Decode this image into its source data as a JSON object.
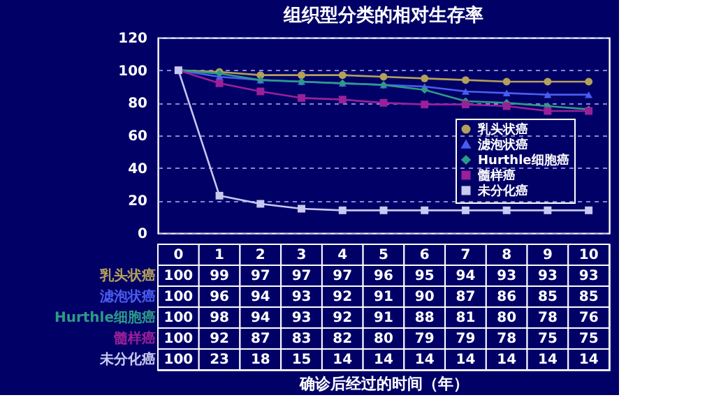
{
  "chart_data": {
    "type": "line",
    "title": "组织型分类的相对生存率",
    "annotations": [
      "确诊后经过的时间（年）"
    ],
    "categories": [
      "0",
      "1",
      "2",
      "3",
      "4",
      "5",
      "6",
      "7",
      "8",
      "9",
      "10"
    ],
    "series": [
      {
        "name": "乳头状癌",
        "color": "#b4a05a",
        "marker": "circle",
        "values": [
          100,
          99,
          97,
          97,
          97,
          96,
          95,
          94,
          93,
          93,
          93
        ]
      },
      {
        "name": "滤泡状癌",
        "color": "#4a5cf0",
        "marker": "triangle",
        "values": [
          100,
          96,
          94,
          93,
          92,
          91,
          90,
          87,
          86,
          85,
          85
        ]
      },
      {
        "name": "Hurthle细胞癌",
        "color": "#2e9a86",
        "marker": "diamond",
        "values": [
          100,
          98,
          94,
          93,
          92,
          91,
          88,
          81,
          80,
          78,
          76
        ]
      },
      {
        "name": "髓样癌",
        "color": "#9a209a",
        "marker": "square",
        "values": [
          100,
          92,
          87,
          83,
          82,
          80,
          79,
          79,
          78,
          75,
          75
        ]
      },
      {
        "name": "未分化癌",
        "color": "#c8c8f0",
        "marker": "square",
        "values": [
          100,
          23,
          18,
          15,
          14,
          14,
          14,
          14,
          14,
          14,
          14
        ]
      }
    ],
    "ylim": [
      0,
      120
    ],
    "yticks": [
      0,
      20,
      40,
      60,
      80,
      100,
      120
    ],
    "grid": "y",
    "line_style": "solid",
    "legend": "right",
    "data_labels": true
  }
}
